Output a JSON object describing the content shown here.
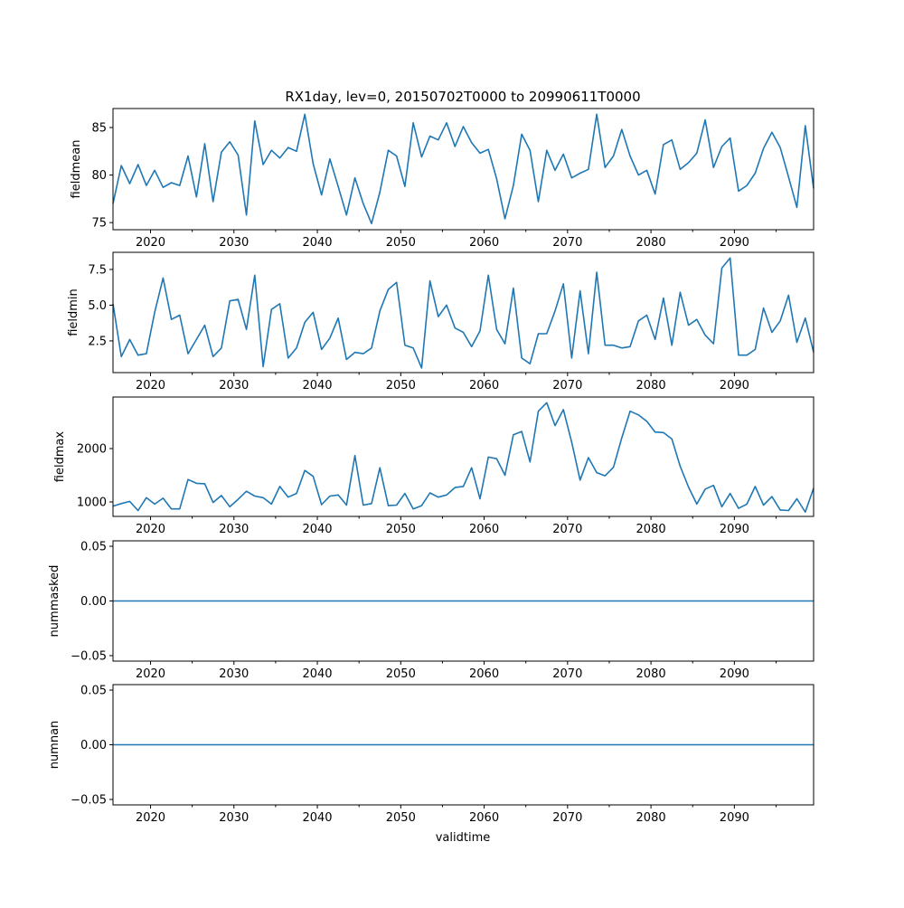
{
  "chart_data": [
    {
      "type": "line",
      "title": "RX1day, lev=0, 20150702T0000 to 20990611T0000",
      "ylabel": "fieldmean",
      "xlabel": "",
      "x_start": 2015.5,
      "x_step": 1,
      "xlim": [
        2015.5,
        2099.5
      ],
      "ylim": [
        74.25,
        87.0
      ],
      "yticks": [
        75,
        80,
        85
      ],
      "ytick_labels": [
        "75",
        "80",
        "85"
      ],
      "values": [
        77.0,
        81.0,
        79.1,
        81.1,
        78.9,
        80.5,
        78.7,
        79.2,
        78.9,
        82.0,
        77.7,
        83.3,
        77.2,
        82.4,
        83.5,
        82.1,
        75.8,
        85.7,
        81.1,
        82.6,
        81.8,
        82.9,
        82.5,
        86.4,
        81.2,
        77.9,
        81.7,
        78.8,
        75.8,
        79.7,
        77.0,
        74.9,
        78.2,
        82.6,
        82.0,
        78.8,
        85.5,
        81.9,
        84.1,
        83.7,
        85.5,
        83.0,
        85.1,
        83.4,
        82.3,
        82.7,
        79.6,
        75.4,
        78.9,
        84.3,
        82.6,
        77.2,
        82.6,
        80.5,
        82.2,
        79.7,
        80.2,
        80.6,
        86.4,
        80.8,
        82.0,
        84.8,
        82.0,
        80.0,
        80.5,
        78.0,
        83.2,
        83.7,
        80.6,
        81.3,
        82.3,
        85.8,
        80.8,
        83.0,
        83.9,
        78.3,
        78.9,
        80.2,
        82.8,
        84.5,
        82.9,
        79.8,
        76.6,
        85.2,
        78.6
      ]
    },
    {
      "type": "line",
      "ylabel": "fieldmin",
      "x_start": 2015.5,
      "x_step": 1,
      "xlim": [
        2015.5,
        2099.5
      ],
      "ylim": [
        0.28,
        8.7
      ],
      "yticks": [
        2.5,
        5.0,
        7.5
      ],
      "ytick_labels": [
        "2.5",
        "5.0",
        "7.5"
      ],
      "values": [
        5.1,
        1.4,
        2.6,
        1.5,
        1.6,
        4.5,
        6.9,
        4.0,
        4.3,
        1.6,
        2.6,
        3.6,
        1.4,
        2.0,
        5.3,
        5.4,
        3.3,
        7.1,
        0.7,
        4.7,
        5.1,
        1.3,
        2.0,
        3.8,
        4.5,
        1.9,
        2.7,
        4.1,
        1.2,
        1.7,
        1.6,
        2.0,
        4.6,
        6.1,
        6.6,
        2.2,
        2.0,
        0.6,
        6.7,
        4.2,
        5.0,
        3.4,
        3.1,
        2.1,
        3.2,
        7.1,
        3.3,
        2.3,
        6.2,
        1.3,
        0.9,
        3.0,
        3.0,
        4.6,
        6.5,
        1.3,
        6.0,
        1.6,
        7.3,
        2.2,
        2.2,
        2.0,
        2.1,
        3.9,
        4.3,
        2.6,
        5.5,
        2.2,
        5.9,
        3.6,
        4.0,
        2.9,
        2.3,
        7.6,
        8.3,
        1.5,
        1.5,
        1.9,
        4.8,
        3.1,
        3.9,
        5.7,
        2.4,
        4.1,
        1.7
      ]
    },
    {
      "type": "line",
      "ylabel": "fieldmax",
      "x_start": 2015.5,
      "x_step": 1,
      "xlim": [
        2015.5,
        2099.5
      ],
      "ylim": [
        729,
        2966
      ],
      "yticks": [
        1000,
        2000
      ],
      "ytick_labels": [
        "1000",
        "2000"
      ],
      "values": [
        920,
        970,
        1010,
        840,
        1080,
        960,
        1070,
        870,
        870,
        1420,
        1350,
        1340,
        990,
        1120,
        910,
        1050,
        1200,
        1110,
        1080,
        960,
        1290,
        1090,
        1160,
        1590,
        1480,
        950,
        1110,
        1130,
        940,
        1870,
        940,
        970,
        1640,
        930,
        940,
        1160,
        870,
        930,
        1170,
        1090,
        1130,
        1270,
        1290,
        1640,
        1060,
        1840,
        1810,
        1500,
        2260,
        2320,
        1750,
        2700,
        2860,
        2430,
        2730,
        2120,
        1410,
        1830,
        1550,
        1490,
        1650,
        2200,
        2700,
        2630,
        2510,
        2310,
        2300,
        2180,
        1670,
        1280,
        960,
        1240,
        1310,
        910,
        1160,
        880,
        960,
        1290,
        940,
        1100,
        850,
        840,
        1060,
        810,
        1260
      ]
    },
    {
      "type": "line",
      "ylabel": "nummasked",
      "x_start": 2015.5,
      "x_step": 1,
      "xlim": [
        2015.5,
        2099.5
      ],
      "ylim": [
        -0.055,
        0.055
      ],
      "yticks": [
        -0.05,
        0.0,
        0.05
      ],
      "ytick_labels": [
        "−0.05",
        "0.00",
        "0.05"
      ],
      "constant_value": 0,
      "count": 85
    },
    {
      "type": "line",
      "ylabel": "numnan",
      "xlabel": "validtime",
      "x_start": 2015.5,
      "x_step": 1,
      "xlim": [
        2015.5,
        2099.5
      ],
      "ylim": [
        -0.055,
        0.055
      ],
      "yticks": [
        -0.05,
        0.0,
        0.05
      ],
      "ytick_labels": [
        "−0.05",
        "0.00",
        "0.05"
      ],
      "constant_value": 0,
      "count": 85
    }
  ],
  "xticks": [
    2020,
    2030,
    2040,
    2050,
    2060,
    2070,
    2080,
    2090
  ],
  "xtick_labels": [
    "2020",
    "2030",
    "2040",
    "2050",
    "2060",
    "2070",
    "2080",
    "2090"
  ],
  "minor_xticks": [
    2025,
    2035,
    2045,
    2055,
    2065,
    2075,
    2085,
    2095
  ],
  "line_color": "#1f77b4"
}
